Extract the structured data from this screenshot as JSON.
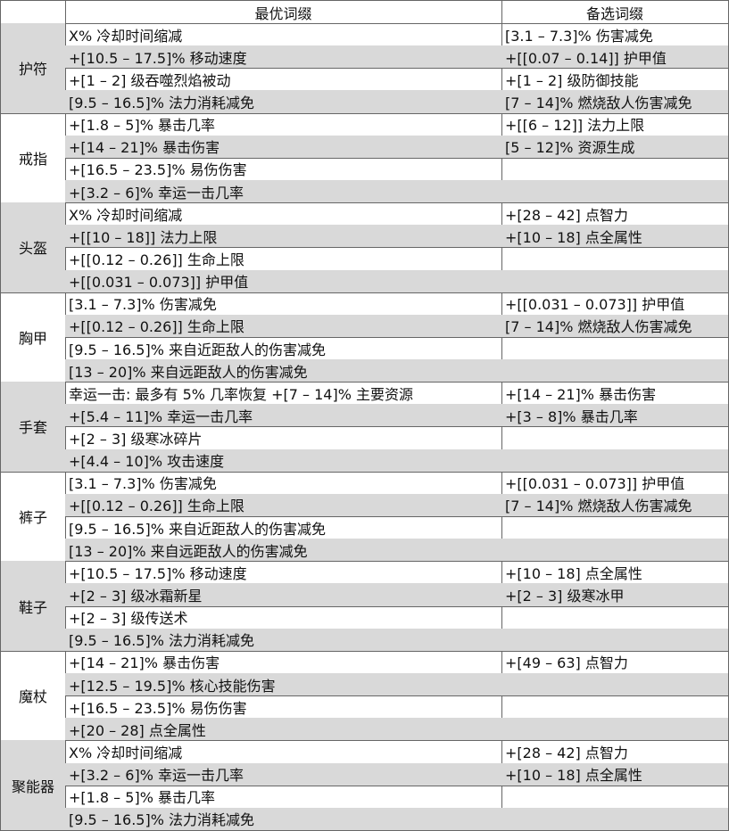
{
  "header": {
    "best": "最优词缀",
    "alt": "备选词缀"
  },
  "groups": [
    {
      "name": "护符",
      "best": [
        "X% 冷却时间缩减",
        "+[10.5 – 17.5]% 移动速度",
        "+[1 – 2] 级吞噬烈焰被动",
        "[9.5 – 16.5]% 法力消耗减免"
      ],
      "alt": [
        "[3.1 – 7.3]% 伤害减免",
        "+[[0.07 – 0.14]] 护甲值",
        "+[1 – 2] 级防御技能",
        "[7 – 14]% 燃烧敌人伤害减免"
      ]
    },
    {
      "name": "戒指",
      "best": [
        "+[1.8 – 5]% 暴击几率",
        "+[14 – 21]% 暴击伤害",
        "+[16.5 – 23.5]% 易伤伤害",
        "+[3.2 – 6]% 幸运一击几率"
      ],
      "alt": [
        "+[[6 – 12]] 法力上限",
        "[5 – 12]% 资源生成"
      ]
    },
    {
      "name": "头盔",
      "best": [
        "X% 冷却时间缩减",
        "+[[10 – 18]] 法力上限",
        "+[[0.12 – 0.26]] 生命上限",
        "+[[0.031 – 0.073]] 护甲值"
      ],
      "alt": [
        "+[28 – 42] 点智力",
        "+[10 – 18] 点全属性"
      ]
    },
    {
      "name": "胸甲",
      "best": [
        "[3.1 – 7.3]% 伤害减免",
        "+[[0.12 – 0.26]] 生命上限",
        "[9.5 – 16.5]% 来自近距敌人的伤害减免",
        "[13 – 20]% 来自远距敌人的伤害减免"
      ],
      "alt": [
        "+[[0.031 – 0.073]] 护甲值",
        "[7 – 14]% 燃烧敌人伤害减免"
      ]
    },
    {
      "name": "手套",
      "best": [
        "幸运一击: 最多有 5% 几率恢复 +[7 – 14]% 主要资源",
        "+[5.4 – 11]% 幸运一击几率",
        "+[2 – 3] 级寒冰碎片",
        "+[4.4 – 10]% 攻击速度"
      ],
      "alt": [
        "+[14 – 21]% 暴击伤害",
        "+[3 – 8]% 暴击几率"
      ]
    },
    {
      "name": "裤子",
      "best": [
        "[3.1 – 7.3]% 伤害减免",
        "+[[0.12 – 0.26]] 生命上限",
        "[9.5 – 16.5]% 来自近距敌人的伤害减免",
        "[13 – 20]% 来自远距敌人的伤害减免"
      ],
      "alt": [
        "+[[0.031 – 0.073]] 护甲值",
        "[7 – 14]% 燃烧敌人伤害减免"
      ]
    },
    {
      "name": "鞋子",
      "best": [
        "+[10.5 – 17.5]% 移动速度",
        "+[2 – 3] 级冰霜新星",
        "+[2 – 3] 级传送术",
        "[9.5 – 16.5]% 法力消耗减免"
      ],
      "alt": [
        "+[10 – 18] 点全属性",
        "+[2 – 3] 级寒冰甲"
      ]
    },
    {
      "name": "魔杖",
      "best": [
        "+[14 – 21]% 暴击伤害",
        "+[12.5 – 19.5]% 核心技能伤害",
        "+[16.5 – 23.5]% 易伤伤害",
        "+[20 – 28] 点全属性"
      ],
      "alt": [
        "+[49 – 63] 点智力"
      ]
    },
    {
      "name": "聚能器",
      "best": [
        "X% 冷却时间缩减",
        "+[3.2 – 6]% 幸运一击几率",
        "+[1.8 – 5]% 暴击几率",
        "[9.5 – 16.5]% 法力消耗减免"
      ],
      "alt": [
        "+[28 – 42] 点智力",
        "+[10 – 18] 点全属性"
      ]
    }
  ]
}
